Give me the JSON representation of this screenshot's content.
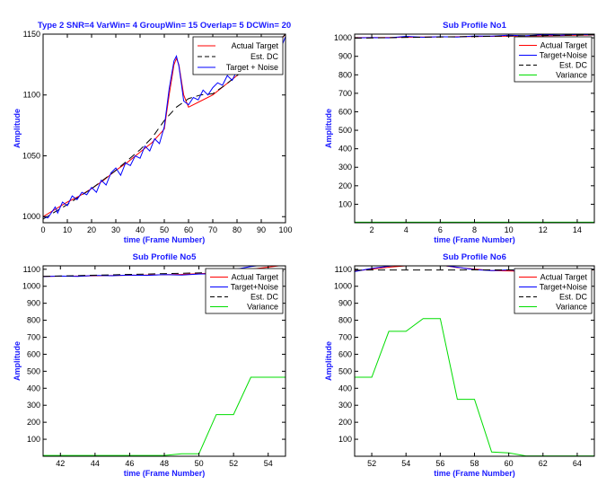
{
  "chart_data": [
    {
      "type": "line",
      "title": "Type 2 SNR=4 VarWin= 4 GroupWin= 15 Overlap= 5 DCWin= 20",
      "xlabel": "time (Frame Number)",
      "ylabel": "Amplitude",
      "xlim": [
        0,
        100
      ],
      "ylim": [
        995,
        1150
      ],
      "xticks": [
        0,
        10,
        20,
        30,
        40,
        50,
        60,
        70,
        80,
        90,
        100
      ],
      "yticks": [
        1000,
        1050,
        1100,
        1150
      ],
      "legend": "top-right",
      "series": [
        {
          "name": "Actual Target",
          "color": "#ff0000",
          "dash": "none",
          "x": [
            0,
            5,
            10,
            15,
            20,
            25,
            30,
            35,
            40,
            45,
            50,
            52,
            54,
            55,
            56,
            58,
            60,
            65,
            70,
            75,
            80,
            85,
            90,
            95,
            100
          ],
          "y": [
            1000,
            1006,
            1012,
            1017,
            1023,
            1030,
            1038,
            1045,
            1053,
            1061,
            1072,
            1100,
            1125,
            1130,
            1125,
            1100,
            1090,
            1095,
            1100,
            1108,
            1116,
            1124,
            1130,
            1138,
            1150
          ]
        },
        {
          "name": "Est. DC",
          "color": "#000000",
          "dash": "8,5",
          "x": [
            0,
            10,
            20,
            30,
            40,
            45,
            50,
            55,
            60,
            65,
            70,
            75,
            80,
            85,
            90,
            95,
            100
          ],
          "y": [
            998,
            1010,
            1023,
            1038,
            1055,
            1065,
            1079,
            1090,
            1097,
            1100,
            1101,
            1108,
            1116,
            1124,
            1131,
            1140,
            1150
          ]
        },
        {
          "name": "Target + Noise",
          "color": "#0000ff",
          "dash": "none",
          "x": [
            0,
            2,
            4,
            5,
            6,
            8,
            10,
            12,
            14,
            16,
            18,
            20,
            22,
            24,
            26,
            28,
            30,
            32,
            34,
            36,
            38,
            40,
            42,
            44,
            46,
            48,
            50,
            52,
            54,
            55,
            56,
            57,
            58,
            60,
            62,
            64,
            66,
            68,
            70,
            72,
            74,
            76,
            78,
            80,
            82,
            84,
            86,
            88,
            90,
            92,
            94,
            96,
            98,
            100
          ],
          "y": [
            1000,
            999,
            1005,
            1008,
            1003,
            1012,
            1009,
            1017,
            1014,
            1020,
            1018,
            1024,
            1020,
            1030,
            1026,
            1036,
            1040,
            1034,
            1044,
            1042,
            1050,
            1048,
            1058,
            1054,
            1064,
            1060,
            1074,
            1105,
            1128,
            1132,
            1124,
            1110,
            1095,
            1092,
            1098,
            1096,
            1104,
            1100,
            1106,
            1110,
            1108,
            1116,
            1112,
            1120,
            1118,
            1126,
            1122,
            1130,
            1128,
            1136,
            1134,
            1140,
            1138,
            1148
          ]
        }
      ]
    },
    {
      "type": "line",
      "title": "Sub Profile No1",
      "xlabel": "time (Frame Number)",
      "ylabel": "Amplitude",
      "xlim": [
        1,
        15
      ],
      "ylim": [
        0,
        1020
      ],
      "xticks": [
        2,
        4,
        6,
        8,
        10,
        12,
        14
      ],
      "yticks": [
        100,
        200,
        300,
        400,
        500,
        600,
        700,
        800,
        900,
        1000
      ],
      "legend": "top-right",
      "series": [
        {
          "name": "Actual Target",
          "color": "#ff0000",
          "dash": "none",
          "x": [
            1,
            3,
            5,
            7,
            9,
            11,
            13,
            15
          ],
          "y": [
            1001,
            1002,
            1004,
            1006,
            1008,
            1010,
            1012,
            1015
          ]
        },
        {
          "name": "Target+Noise",
          "color": "#0000ff",
          "dash": "none",
          "x": [
            1,
            2,
            3,
            4,
            5,
            6,
            7,
            8,
            9,
            10,
            11,
            12,
            13,
            14,
            15
          ],
          "y": [
            999,
            1001,
            1000,
            1008,
            1003,
            1006,
            1004,
            1010,
            1009,
            1014,
            1011,
            1017,
            1014,
            1018,
            1016
          ]
        },
        {
          "name": "Est. DC",
          "color": "#000000",
          "dash": "8,5",
          "x": [
            1,
            15
          ],
          "y": [
            998,
            1016
          ]
        },
        {
          "name": "Variance",
          "color": "#00dd00",
          "dash": "none",
          "x": [
            1,
            15
          ],
          "y": [
            3,
            3
          ]
        }
      ]
    },
    {
      "type": "line",
      "title": "Sub Profile No5",
      "xlabel": "time (Frame Number)",
      "ylabel": "Amplitude",
      "xlim": [
        41,
        55
      ],
      "ylim": [
        0,
        1120
      ],
      "xticks": [
        42,
        44,
        46,
        48,
        50,
        52,
        54
      ],
      "yticks": [
        100,
        200,
        300,
        400,
        500,
        600,
        700,
        800,
        900,
        1000,
        1100
      ],
      "legend": "top-right",
      "series": [
        {
          "name": "Actual Target",
          "color": "#ff0000",
          "dash": "none",
          "x": [
            41,
            43,
            45,
            47,
            49,
            51,
            53,
            55
          ],
          "y": [
            1058,
            1060,
            1063,
            1066,
            1070,
            1078,
            1100,
            1125
          ]
        },
        {
          "name": "Target+Noise",
          "color": "#0000ff",
          "dash": "none",
          "x": [
            41,
            42,
            43,
            44,
            45,
            46,
            47,
            48,
            49,
            50,
            51,
            52,
            53,
            54,
            55
          ],
          "y": [
            1057,
            1060,
            1058,
            1064,
            1062,
            1066,
            1064,
            1068,
            1066,
            1072,
            1074,
            1098,
            1116,
            1128,
            1132
          ]
        },
        {
          "name": "Est. DC",
          "color": "#000000",
          "dash": "8,5",
          "x": [
            41,
            55
          ],
          "y": [
            1058,
            1090
          ]
        },
        {
          "name": "Variance",
          "color": "#00dd00",
          "dash": "none",
          "x": [
            41,
            48,
            49,
            50,
            51,
            52,
            53,
            54,
            55
          ],
          "y": [
            5,
            5,
            15,
            15,
            245,
            245,
            465,
            465,
            465
          ]
        }
      ]
    },
    {
      "type": "line",
      "title": "Sub Profile No6",
      "xlabel": "time (Frame Number)",
      "ylabel": "Amplitude",
      "xlim": [
        51,
        65
      ],
      "ylim": [
        0,
        1120
      ],
      "xticks": [
        52,
        54,
        56,
        58,
        60,
        62,
        64
      ],
      "yticks": [
        100,
        200,
        300,
        400,
        500,
        600,
        700,
        800,
        900,
        1000,
        1100
      ],
      "legend": "top-right",
      "series": [
        {
          "name": "Actual Target",
          "color": "#ff0000",
          "dash": "none",
          "x": [
            51,
            53,
            55,
            56,
            57,
            59,
            61,
            63,
            65
          ],
          "y": [
            1090,
            1112,
            1128,
            1125,
            1110,
            1092,
            1088,
            1092,
            1096
          ]
        },
        {
          "name": "Target+Noise",
          "color": "#0000ff",
          "dash": "none",
          "x": [
            51,
            52,
            53,
            54,
            55,
            56,
            57,
            58,
            59,
            60,
            61,
            62,
            63,
            64,
            65
          ],
          "y": [
            1086,
            1105,
            1118,
            1126,
            1130,
            1124,
            1112,
            1098,
            1092,
            1096,
            1090,
            1094,
            1098,
            1094,
            1100
          ]
        },
        {
          "name": "Est. DC",
          "color": "#000000",
          "dash": "8,5",
          "x": [
            51,
            65
          ],
          "y": [
            1095,
            1097
          ]
        },
        {
          "name": "Variance",
          "color": "#00dd00",
          "dash": "none",
          "x": [
            51,
            52,
            53,
            54,
            55,
            56,
            57,
            58,
            59,
            60,
            61,
            62,
            63,
            64,
            65
          ],
          "y": [
            465,
            465,
            735,
            735,
            810,
            810,
            335,
            335,
            25,
            20,
            2,
            2,
            2,
            2,
            2
          ]
        }
      ]
    }
  ]
}
